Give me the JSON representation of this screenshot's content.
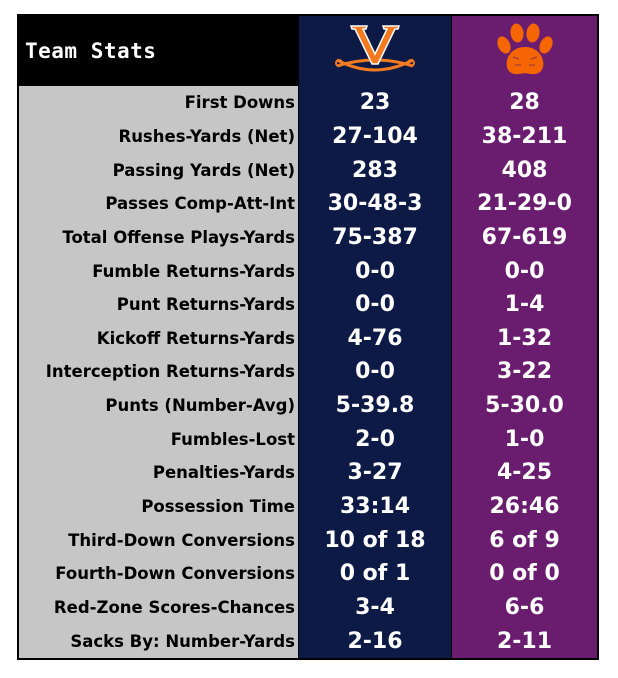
{
  "title": "Team Stats",
  "teams": [
    {
      "logo": "virginia-v-sabres-icon",
      "color": "#0c1a45",
      "accent": "#f37a20"
    },
    {
      "logo": "clemson-paw-icon",
      "color": "#6a1d6e",
      "accent": "#f56600"
    }
  ],
  "stats": [
    {
      "label": "First Downs",
      "home": "23",
      "away": "28"
    },
    {
      "label": "Rushes-Yards (Net)",
      "home": "27-104",
      "away": "38-211"
    },
    {
      "label": "Passing Yards (Net)",
      "home": "283",
      "away": "408"
    },
    {
      "label": "Passes Comp-Att-Int",
      "home": "30-48-3",
      "away": "21-29-0"
    },
    {
      "label": "Total Offense Plays-Yards",
      "home": "75-387",
      "away": "67-619"
    },
    {
      "label": "Fumble Returns-Yards",
      "home": "0-0",
      "away": "0-0"
    },
    {
      "label": "Punt Returns-Yards",
      "home": "0-0",
      "away": "1-4"
    },
    {
      "label": "Kickoff Returns-Yards",
      "home": "4-76",
      "away": "1-32"
    },
    {
      "label": "Interception Returns-Yards",
      "home": "0-0",
      "away": "3-22"
    },
    {
      "label": "Punts (Number-Avg)",
      "home": "5-39.8",
      "away": "5-30.0"
    },
    {
      "label": "Fumbles-Lost",
      "home": "2-0",
      "away": "1-0"
    },
    {
      "label": "Penalties-Yards",
      "home": "3-27",
      "away": "4-25"
    },
    {
      "label": "Possession Time",
      "home": "33:14",
      "away": "26:46"
    },
    {
      "label": "Third-Down Conversions",
      "home": "10 of 18",
      "away": "6 of 9"
    },
    {
      "label": "Fourth-Down Conversions",
      "home": "0 of 1",
      "away": "0 of 0"
    },
    {
      "label": "Red-Zone Scores-Chances",
      "home": "3-4",
      "away": "6-6"
    },
    {
      "label": "Sacks By: Number-Yards",
      "home": "2-16",
      "away": "2-11"
    }
  ]
}
